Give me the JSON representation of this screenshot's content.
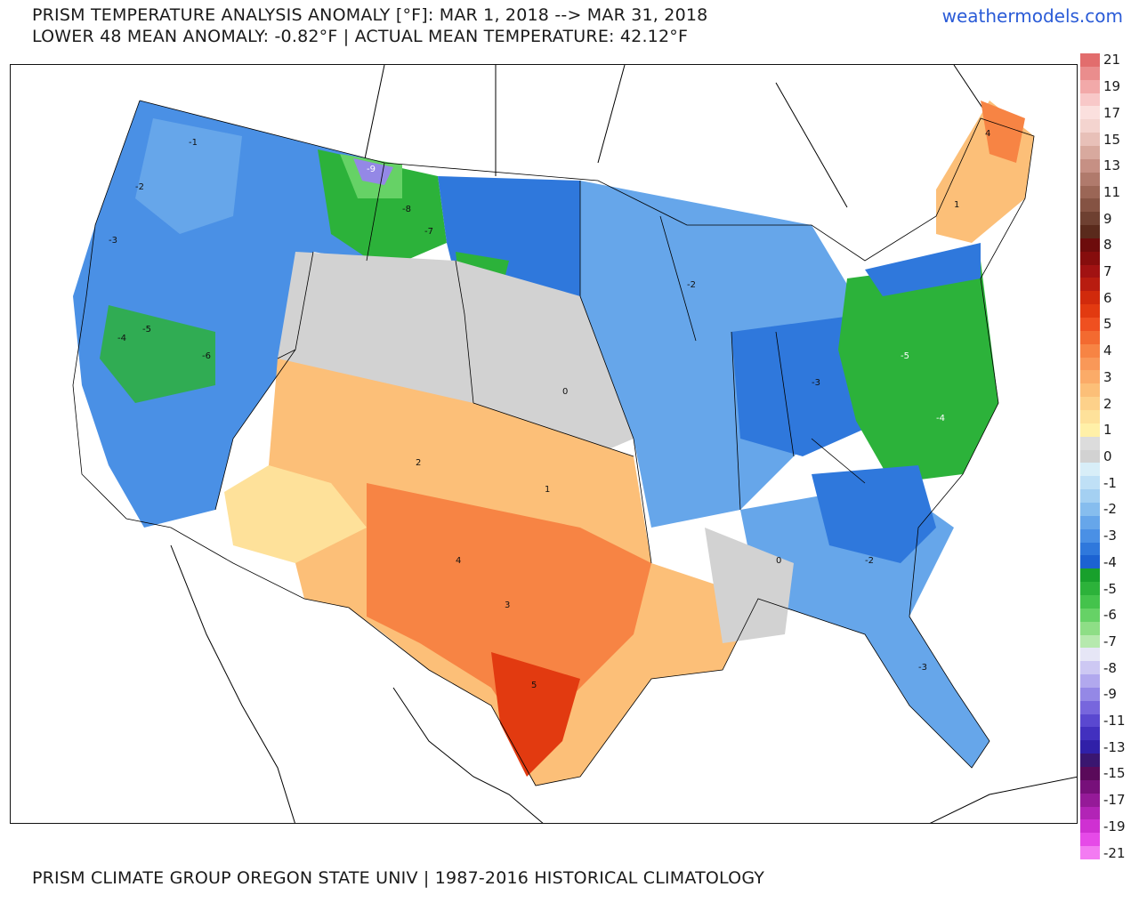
{
  "header": {
    "title_line1": "PRISM TEMPERATURE ANALYSIS ANOMALY [°F]: MAR 1, 2018 --> MAR 31, 2018",
    "title_line2": "LOWER 48 MEAN ANOMALY: -0.82°F | ACTUAL MEAN TEMPERATURE: 42.12°F",
    "brand": "weathermodels.com"
  },
  "footer": {
    "credit": "PRISM CLIMATE GROUP OREGON STATE UNIV | 1987-2016 HISTORICAL CLIMATOLOGY"
  },
  "legend": {
    "entries": [
      {
        "label": "21",
        "color": "#e26d6d"
      },
      {
        "label": "20",
        "color": "#ea8d8d"
      },
      {
        "label": "19",
        "color": "#f2a9a9"
      },
      {
        "label": "18",
        "color": "#f8c8c8"
      },
      {
        "label": "17",
        "color": "#fbe0de"
      },
      {
        "label": "16",
        "color": "#f4d4cf"
      },
      {
        "label": "15",
        "color": "#e8c0b8"
      },
      {
        "label": "14",
        "color": "#d8a99e"
      },
      {
        "label": "13",
        "color": "#c69084"
      },
      {
        "label": "12",
        "color": "#b07a6c"
      },
      {
        "label": "11",
        "color": "#9b6656"
      },
      {
        "label": "10",
        "color": "#855343"
      },
      {
        "label": "9",
        "color": "#6e4031"
      },
      {
        "label": "8.5",
        "color": "#5a2a1c"
      },
      {
        "label": "8",
        "color": "#6d0c0c"
      },
      {
        "label": "7.5",
        "color": "#860d0d"
      },
      {
        "label": "7",
        "color": "#a11212"
      },
      {
        "label": "6.5",
        "color": "#b81c10"
      },
      {
        "label": "6",
        "color": "#d12a0c"
      },
      {
        "label": "5.5",
        "color": "#e23a10"
      },
      {
        "label": "5",
        "color": "#ef5020"
      },
      {
        "label": "4.5",
        "color": "#f36a30"
      },
      {
        "label": "4",
        "color": "#f78444"
      },
      {
        "label": "3.5",
        "color": "#f99858"
      },
      {
        "label": "3",
        "color": "#fbab68"
      },
      {
        "label": "2.5",
        "color": "#fcbf78"
      },
      {
        "label": "2",
        "color": "#fdd18a"
      },
      {
        "label": "1.5",
        "color": "#fee19a"
      },
      {
        "label": "1",
        "color": "#fff0a8"
      },
      {
        "label": "0.5",
        "color": "#dcdcdc"
      },
      {
        "label": "0",
        "color": "#d2d2d2"
      },
      {
        "label": "-0.5",
        "color": "#d8eef8"
      },
      {
        "label": "-1",
        "color": "#bfe0f6"
      },
      {
        "label": "-1.5",
        "color": "#a4d0f2"
      },
      {
        "label": "-2",
        "color": "#86bdee"
      },
      {
        "label": "-2.5",
        "color": "#66a6ea"
      },
      {
        "label": "-3",
        "color": "#4a90e5"
      },
      {
        "label": "-3.5",
        "color": "#2f78dc"
      },
      {
        "label": "-4",
        "color": "#1c62d2"
      },
      {
        "label": "-4.5",
        "color": "#18a02c"
      },
      {
        "label": "-5",
        "color": "#2cb23a"
      },
      {
        "label": "-5.5",
        "color": "#44c34c"
      },
      {
        "label": "-6",
        "color": "#66d266"
      },
      {
        "label": "-6.5",
        "color": "#8ede86"
      },
      {
        "label": "-7",
        "color": "#b6e9ae"
      },
      {
        "label": "-7.5",
        "color": "#e6e6f6"
      },
      {
        "label": "-8",
        "color": "#cdc8f3"
      },
      {
        "label": "-8.5",
        "color": "#b1a8ee"
      },
      {
        "label": "-9",
        "color": "#9488e6"
      },
      {
        "label": "-10",
        "color": "#7766dd"
      },
      {
        "label": "-11",
        "color": "#5a48d0"
      },
      {
        "label": "-12",
        "color": "#4230bf"
      },
      {
        "label": "-13",
        "color": "#3020a8"
      },
      {
        "label": "-14",
        "color": "#3a1670"
      },
      {
        "label": "-15",
        "color": "#5a0a5a"
      },
      {
        "label": "-16",
        "color": "#77107a"
      },
      {
        "label": "-17",
        "color": "#951a98"
      },
      {
        "label": "-18",
        "color": "#b224b6"
      },
      {
        "label": "-19",
        "color": "#cf30d2"
      },
      {
        "label": "-20",
        "color": "#e64ae8"
      },
      {
        "label": "-21",
        "color": "#f37bf2"
      }
    ],
    "shown_labels": [
      "21",
      "19",
      "17",
      "15",
      "13",
      "11",
      "9",
      "8",
      "7",
      "6",
      "5",
      "4",
      "3",
      "2",
      "1",
      "0",
      "-1",
      "-2",
      "-3",
      "-4",
      "-5",
      "-6",
      "-7",
      "-8",
      "-9",
      "-11",
      "-13",
      "-15",
      "-17",
      "-19",
      "-21"
    ]
  },
  "map": {
    "colors": {
      "ocean": "#ffffff",
      "outside": "#ffffff",
      "border": "#000000"
    },
    "anomaly_labels": [
      "-1",
      "-2",
      "-3",
      "-4",
      "-5",
      "-6",
      "-7",
      "-8",
      "-9",
      "0",
      "1",
      "2",
      "3",
      "4",
      "5"
    ]
  }
}
